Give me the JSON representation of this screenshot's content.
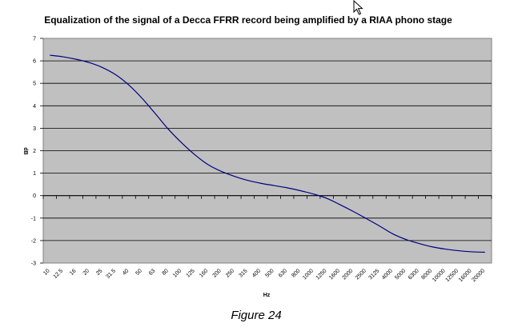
{
  "caption": "Figure 24",
  "chart_data": {
    "type": "line",
    "title": "Equalization of the signal of a Decca FFRR record being amplified by a RIAA phono stage",
    "xlabel": "Hz",
    "ylabel": "dB",
    "ylim": [
      -3,
      7
    ],
    "grid": true,
    "plot_background": "#c0c0c0",
    "line_color": "#000080",
    "categories": [
      "10",
      "12.5",
      "16",
      "20",
      "25",
      "31.5",
      "40",
      "50",
      "63",
      "80",
      "100",
      "125",
      "160",
      "200",
      "250",
      "315",
      "400",
      "500",
      "630",
      "800",
      "1000",
      "1250",
      "1600",
      "2000",
      "2500",
      "3125",
      "4000",
      "5000",
      "6300",
      "8000",
      "10000",
      "12500",
      "16000",
      "20000"
    ],
    "series": [
      {
        "values": [
          6.25,
          6.18,
          6.07,
          5.92,
          5.7,
          5.38,
          4.92,
          4.33,
          3.65,
          2.95,
          2.35,
          1.82,
          1.38,
          1.08,
          0.86,
          0.68,
          0.55,
          0.45,
          0.35,
          0.22,
          0.07,
          -0.12,
          -0.4,
          -0.7,
          -1.02,
          -1.35,
          -1.7,
          -1.95,
          -2.13,
          -2.28,
          -2.38,
          -2.45,
          -2.5,
          -2.52
        ]
      }
    ]
  }
}
